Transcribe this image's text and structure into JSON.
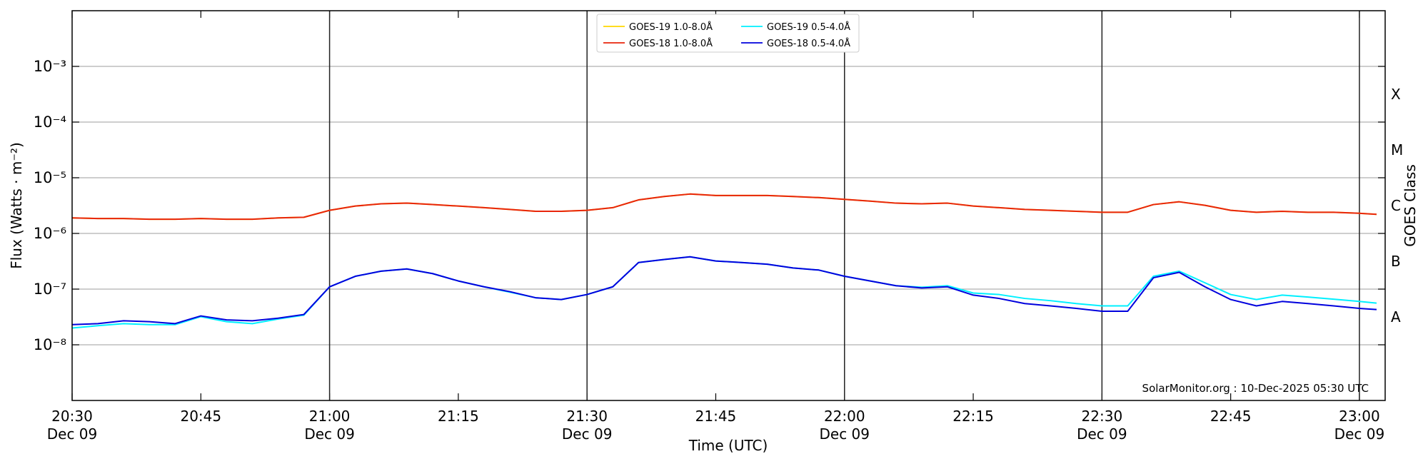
{
  "chart_data": {
    "type": "line",
    "xlabel": "Time (UTC)",
    "ylabel": "Flux (Watts · m⁻²)",
    "y2label": "GOES Class",
    "annotation": "SolarMonitor.org : 10-Dec-2025 05:30 UTC",
    "log_y": true,
    "grid": true,
    "legend": "upper center",
    "x": [
      "20:30",
      "20:33",
      "20:36",
      "20:39",
      "20:42",
      "20:45",
      "20:48",
      "20:51",
      "20:54",
      "20:57",
      "21:00",
      "21:03",
      "21:06",
      "21:09",
      "21:12",
      "21:15",
      "21:18",
      "21:21",
      "21:24",
      "21:27",
      "21:30",
      "21:33",
      "21:36",
      "21:39",
      "21:42",
      "21:45",
      "21:48",
      "21:51",
      "21:54",
      "21:57",
      "22:00",
      "22:03",
      "22:06",
      "22:09",
      "22:12",
      "22:15",
      "22:18",
      "22:21",
      "22:24",
      "22:27",
      "22:30",
      "22:33",
      "22:36",
      "22:39",
      "22:42",
      "22:45",
      "22:48",
      "22:51",
      "22:54",
      "22:57",
      "23:00",
      "23:02"
    ],
    "series": [
      {
        "name": "GOES-19 1.0-8.0Å",
        "color": "#ffd700",
        "values": [
          1.9e-06,
          1.85e-06,
          1.85e-06,
          1.8e-06,
          1.8e-06,
          1.85e-06,
          1.8e-06,
          1.8e-06,
          1.9e-06,
          1.95e-06,
          2.6e-06,
          3.1e-06,
          3.4e-06,
          3.5e-06,
          3.3e-06,
          3.1e-06,
          2.9e-06,
          2.7e-06,
          2.5e-06,
          2.5e-06,
          2.6e-06,
          2.9e-06,
          4e-06,
          4.6e-06,
          5.1e-06,
          4.8e-06,
          4.8e-06,
          4.8e-06,
          4.6e-06,
          4.4e-06,
          4.1e-06,
          3.8e-06,
          3.5e-06,
          3.4e-06,
          3.5e-06,
          3.1e-06,
          2.9e-06,
          2.7e-06,
          2.6e-06,
          2.5e-06,
          2.4e-06,
          2.4e-06,
          3.3e-06,
          3.7e-06,
          3.2e-06,
          2.6e-06,
          2.4e-06,
          2.5e-06,
          2.4e-06,
          2.4e-06,
          2.3e-06,
          2.2e-06
        ]
      },
      {
        "name": "GOES-18 1.0-8.0Å",
        "color": "#e8250c",
        "values": [
          1.9e-06,
          1.85e-06,
          1.85e-06,
          1.8e-06,
          1.8e-06,
          1.85e-06,
          1.8e-06,
          1.8e-06,
          1.9e-06,
          1.95e-06,
          2.6e-06,
          3.1e-06,
          3.4e-06,
          3.5e-06,
          3.3e-06,
          3.1e-06,
          2.9e-06,
          2.7e-06,
          2.5e-06,
          2.5e-06,
          2.6e-06,
          2.9e-06,
          4e-06,
          4.6e-06,
          5.1e-06,
          4.8e-06,
          4.8e-06,
          4.8e-06,
          4.6e-06,
          4.4e-06,
          4.1e-06,
          3.8e-06,
          3.5e-06,
          3.4e-06,
          3.5e-06,
          3.1e-06,
          2.9e-06,
          2.7e-06,
          2.6e-06,
          2.5e-06,
          2.4e-06,
          2.4e-06,
          3.3e-06,
          3.7e-06,
          3.2e-06,
          2.6e-06,
          2.4e-06,
          2.5e-06,
          2.4e-06,
          2.4e-06,
          2.3e-06,
          2.2e-06
        ]
      },
      {
        "name": "GOES-19 0.5-4.0Å",
        "color": "#00f0ff",
        "values": [
          2e-08,
          2.2e-08,
          2.4e-08,
          2.3e-08,
          2.3e-08,
          3.2e-08,
          2.6e-08,
          2.4e-08,
          2.9e-08,
          3.4e-08,
          1.1e-07,
          1.7e-07,
          2.1e-07,
          2.3e-07,
          1.9e-07,
          1.4e-07,
          1.1e-07,
          8.8e-08,
          7e-08,
          6.5e-08,
          8e-08,
          1.1e-07,
          3e-07,
          3.4e-07,
          3.8e-07,
          3.2e-07,
          3e-07,
          2.8e-07,
          2.4e-07,
          2.2e-07,
          1.7e-07,
          1.4e-07,
          1.15e-07,
          1.08e-07,
          1.15e-07,
          8.5e-08,
          8e-08,
          6.8e-08,
          6.2e-08,
          5.5e-08,
          5e-08,
          5e-08,
          1.7e-07,
          2.1e-07,
          1.3e-07,
          8e-08,
          6.5e-08,
          7.8e-08,
          7.2e-08,
          6.6e-08,
          6e-08,
          5.6e-08
        ]
      },
      {
        "name": "GOES-18 0.5-4.0Å",
        "color": "#0000dd",
        "values": [
          2.3e-08,
          2.4e-08,
          2.7e-08,
          2.6e-08,
          2.4e-08,
          3.3e-08,
          2.8e-08,
          2.7e-08,
          3e-08,
          3.5e-08,
          1.1e-07,
          1.7e-07,
          2.1e-07,
          2.3e-07,
          1.9e-07,
          1.4e-07,
          1.1e-07,
          9e-08,
          7e-08,
          6.5e-08,
          8e-08,
          1.1e-07,
          3e-07,
          3.4e-07,
          3.8e-07,
          3.2e-07,
          3e-07,
          2.8e-07,
          2.4e-07,
          2.2e-07,
          1.7e-07,
          1.4e-07,
          1.15e-07,
          1.05e-07,
          1.1e-07,
          7.8e-08,
          6.8e-08,
          5.5e-08,
          5e-08,
          4.5e-08,
          4e-08,
          4e-08,
          1.6e-07,
          2e-07,
          1.1e-07,
          6.5e-08,
          5e-08,
          6e-08,
          5.5e-08,
          5e-08,
          4.5e-08,
          4.3e-08
        ]
      }
    ],
    "xlim": [
      "20:30",
      "23:03"
    ],
    "xticks": [
      {
        "value": "20:30",
        "label": [
          "20:30",
          "Dec 09"
        ]
      },
      {
        "value": "20:45",
        "label": [
          "20:45",
          ""
        ]
      },
      {
        "value": "21:00",
        "label": [
          "21:00",
          "Dec 09"
        ]
      },
      {
        "value": "21:15",
        "label": [
          "21:15",
          ""
        ]
      },
      {
        "value": "21:30",
        "label": [
          "21:30",
          "Dec 09"
        ]
      },
      {
        "value": "21:45",
        "label": [
          "21:45",
          ""
        ]
      },
      {
        "value": "22:00",
        "label": [
          "22:00",
          "Dec 09"
        ]
      },
      {
        "value": "22:15",
        "label": [
          "22:15",
          ""
        ]
      },
      {
        "value": "22:30",
        "label": [
          "22:30",
          "Dec 09"
        ]
      },
      {
        "value": "22:45",
        "label": [
          "22:45",
          ""
        ]
      },
      {
        "value": "23:00",
        "label": [
          "23:00",
          "Dec 09"
        ]
      }
    ],
    "vlines": [
      "21:00",
      "21:30",
      "22:00",
      "22:30",
      "23:00"
    ],
    "ylim": [
      1e-09,
      0.01
    ],
    "yticks": [
      {
        "value": 1e-08,
        "label": "10⁻⁸"
      },
      {
        "value": 1e-07,
        "label": "10⁻⁷"
      },
      {
        "value": 1e-06,
        "label": "10⁻⁶"
      },
      {
        "value": 1e-05,
        "label": "10⁻⁵"
      },
      {
        "value": 0.0001,
        "label": "10⁻⁴"
      },
      {
        "value": 0.001,
        "label": "10⁻³"
      }
    ],
    "y2lim": [
      1e-09,
      0.01
    ],
    "y2ticks": [
      {
        "value": 3.16e-08,
        "label": "A"
      },
      {
        "value": 3.16e-07,
        "label": "B"
      },
      {
        "value": 3.16e-06,
        "label": "C"
      },
      {
        "value": 3.16e-05,
        "label": "M"
      },
      {
        "value": 0.000316,
        "label": "X"
      }
    ]
  }
}
